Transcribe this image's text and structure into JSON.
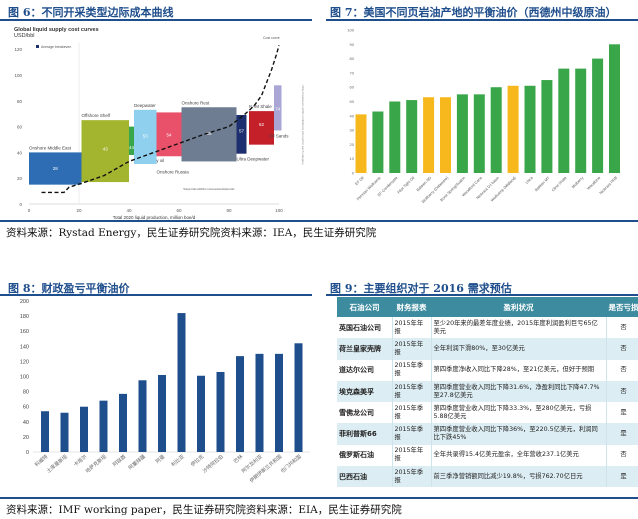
{
  "fig6": {
    "title": "图 6：不同开采类型边际成本曲线",
    "chart_data": {
      "type": "bar",
      "title": "Global liquid supply cost curves",
      "ylabel": "USD/bbl",
      "xlabel": "Total 2020 liquid production, million boe/d",
      "xlim": [
        0,
        100
      ],
      "ylim": [
        0,
        120
      ],
      "xticks": [
        "0",
        "20",
        "40",
        "60",
        "80",
        "100"
      ],
      "yticks": [
        "0",
        "20",
        "40",
        "60",
        "80",
        "100",
        "120"
      ],
      "legend": "Average breakeven",
      "segments": [
        {
          "name": "Onshore Middle East",
          "x": [
            0,
            21
          ],
          "range": [
            15,
            40
          ],
          "value": 28,
          "color": "#2e6db4"
        },
        {
          "name": "Offshore Shelf",
          "x": [
            21,
            40
          ],
          "range": [
            17,
            65
          ],
          "value": 43,
          "color": "#a3b42f"
        },
        {
          "name": "Extra Heavy oil",
          "x": [
            40,
            42
          ],
          "range": [
            38,
            60
          ],
          "value": 44,
          "color": "#3aa64a"
        },
        {
          "name": "Deepwater",
          "x": [
            42,
            51
          ],
          "range": [
            31,
            73
          ],
          "value": 53,
          "color": "#8fd0ee"
        },
        {
          "name": "Onshore Russia",
          "x": [
            51,
            61
          ],
          "range": [
            37,
            71
          ],
          "value": 54,
          "color": "#e9506a"
        },
        {
          "name": "Onshore Rest",
          "x": [
            61,
            83
          ],
          "range": [
            33,
            75
          ],
          "value": 55,
          "color": "#6f7d92"
        },
        {
          "name": "Ultra Deepwater",
          "x": [
            83,
            87
          ],
          "range": [
            39,
            69
          ],
          "value": 57,
          "color": "#1d2f6e"
        },
        {
          "name": "NAM Shale",
          "x": [
            88,
            98
          ],
          "range": [
            46,
            72
          ],
          "value": 62,
          "color": "#c3202a"
        },
        {
          "name": "Oil Sands",
          "x": [
            98,
            101
          ],
          "range": [
            57,
            92
          ],
          "value": 74,
          "color": "#a9a5d4"
        }
      ],
      "cost_curve": [
        [
          5,
          9
        ],
        [
          14,
          9
        ],
        [
          16,
          13
        ],
        [
          21,
          16
        ],
        [
          30,
          22
        ],
        [
          40,
          33
        ],
        [
          50,
          40
        ],
        [
          60,
          47
        ],
        [
          70,
          54
        ],
        [
          80,
          60
        ],
        [
          86,
          69
        ],
        [
          90,
          76
        ],
        [
          93,
          84
        ],
        [
          95,
          94
        ],
        [
          97,
          104
        ],
        [
          99,
          116
        ],
        [
          100,
          123
        ]
      ],
      "annotations": {
        "cost_curve": "Cost curve",
        "shale_note": "Shale production in 2020 from onshore as share of total production",
        "ci_note": "Only breakeven within confidence interval for each category"
      }
    }
  },
  "fig7": {
    "title": "图 7：美国不同页岩油产地的平衡油价（西德州中级原油）",
    "chart_data": {
      "type": "bar",
      "ylim": [
        0,
        100
      ],
      "yticks": [
        "0",
        "10",
        "20",
        "30",
        "40",
        "50",
        "60",
        "70",
        "80",
        "90",
        "100"
      ],
      "categories": [
        "EF Oil",
        "Permian Wolfcamp",
        "EF Condensate",
        "Pilot Tight Oil",
        "Bakken ND",
        "Wolfberry (Delaware)",
        "Bone Spring/Avalon",
        "Woodford Cana",
        "Niobrara DJ basin",
        "Wolfcamp (Midland)",
        "Utica",
        "Bakken MT",
        "Cline Shale",
        "Mulberry",
        "Woodbine",
        "Niobrara PRB"
      ],
      "values": [
        41,
        43,
        50,
        51,
        53,
        53,
        55,
        55,
        60,
        61,
        61,
        65,
        73,
        73,
        80,
        90
      ],
      "highlight": [
        true,
        false,
        false,
        false,
        true,
        true,
        false,
        false,
        false,
        true,
        false,
        false,
        false,
        false,
        false,
        false
      ],
      "colors": {
        "highlight": "#f6b81c",
        "default": "#3aa64a"
      }
    }
  },
  "source_top": "资料来源：Rystad Energy，民生证券研究院资料来源：IEA，民生证券研究院",
  "fig8": {
    "title": "图 8：财政盈亏平衡油价",
    "chart_data": {
      "type": "bar",
      "ylim": [
        0,
        200
      ],
      "yticks": [
        "0",
        "20",
        "40",
        "60",
        "80",
        "100",
        "120",
        "140",
        "160",
        "180",
        "200"
      ],
      "categories": [
        "科威特",
        "土库曼斯坦",
        "卡塔尔",
        "哈萨克斯坦",
        "阿联酋",
        "阿塞拜疆",
        "阿曼",
        "利比亚",
        "伊拉克",
        "沙特阿拉伯",
        "巴林",
        "阿尔及利亚",
        "伊朗伊斯兰共和国",
        "也门共和国"
      ],
      "values": [
        54,
        52,
        60,
        68,
        77,
        95,
        102,
        184,
        101,
        106,
        127,
        130,
        130,
        144
      ],
      "color": "#1f4e8c"
    }
  },
  "source_bottom": "资料来源：IMF working paper，民生证券研究院资料来源：EIA，民生证券研究院",
  "fig9": {
    "title": "图 9：主要组织对于 2016 需求预估",
    "headers": [
      "石油公司",
      "财务报表",
      "盈利状况",
      "是否亏损"
    ],
    "rows": [
      [
        "英国石油公司",
        "2015年年报",
        "至少20年来的最差年度业绩，2015年度利润盈利巨亏65亿美元",
        "否"
      ],
      [
        "荷兰皇家壳牌",
        "2015年年报",
        "全年利润下滑80%，至30亿美元",
        "否"
      ],
      [
        "道达尔公司",
        "2015年季报",
        "第四季度净收入同比下降28%，至21亿美元，但好于预期",
        "否"
      ],
      [
        "埃克森美孚",
        "2015年季报",
        "第四季度营业收入同比下降31.6%，净盈利同比下降47.7%至27.8亿美元",
        "否"
      ],
      [
        "雪佛龙公司",
        "2015年季报",
        "第四季度营业收入同比下降33.3%，至280亿美元，亏损5.88亿美元",
        "是"
      ],
      [
        "菲利普斯66",
        "2015年季报",
        "第四季度营业收入同比下降36%，至220.5亿美元，利润同比下跌45%",
        "是"
      ],
      [
        "俄罗斯石油",
        "2015年年报",
        "全年共录得15.4亿美元盈余，全年营收237.1亿美元",
        "否"
      ],
      [
        "巴西石油",
        "2015年季报",
        "前三季净营销额同比减少19.8%，亏损762.70亿日元",
        "是"
      ]
    ]
  }
}
